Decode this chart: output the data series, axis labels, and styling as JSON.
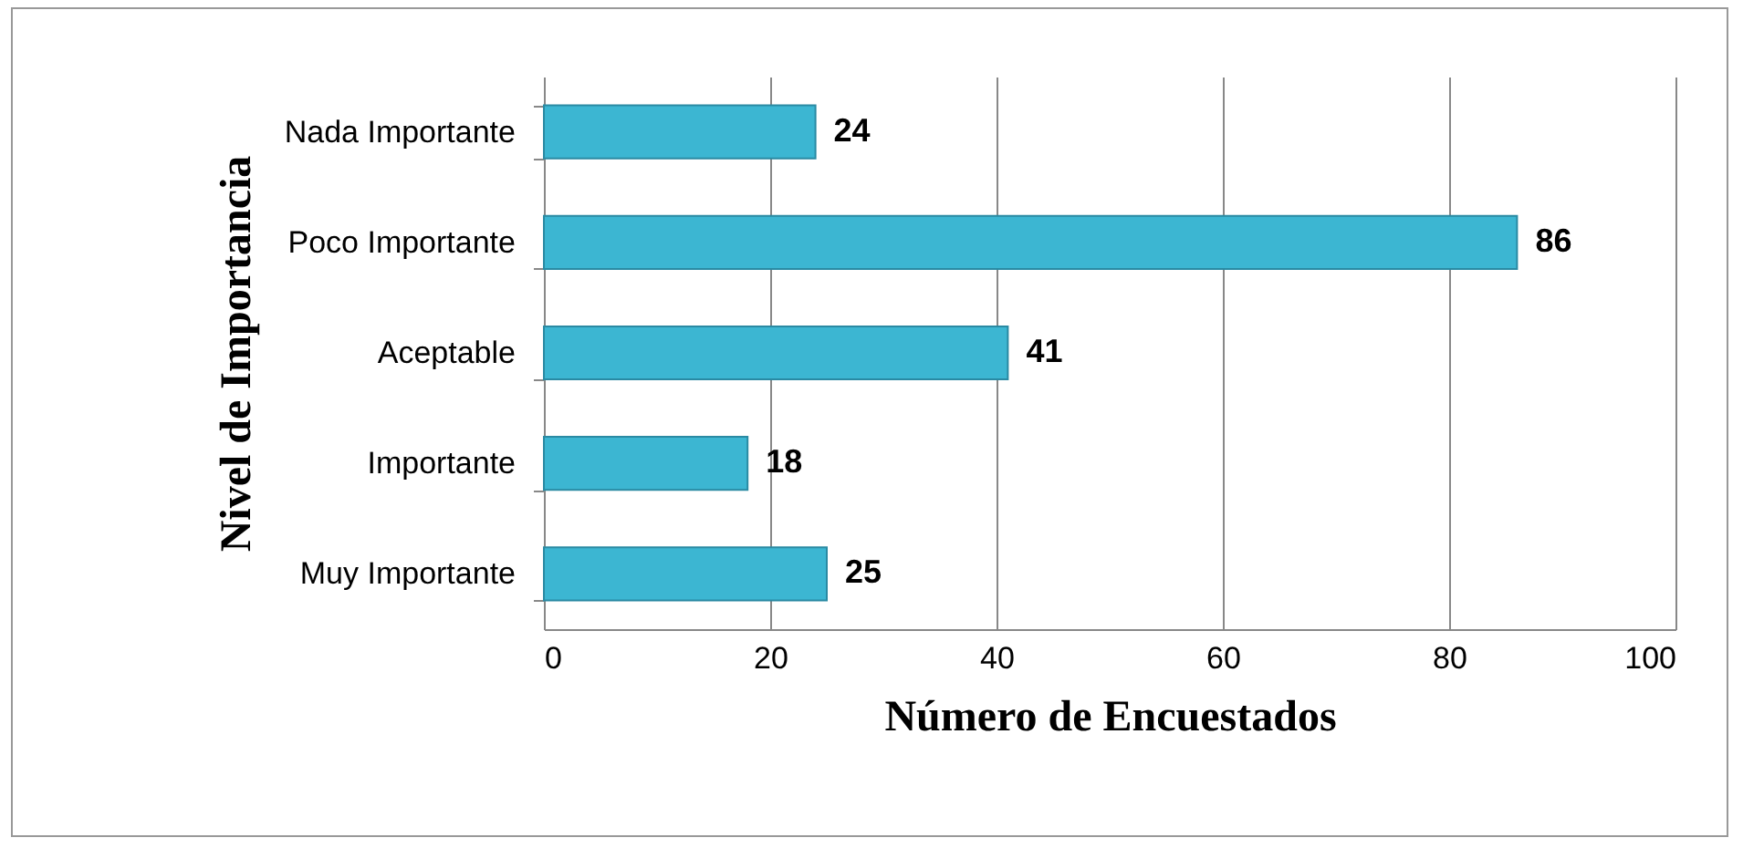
{
  "chart_data": {
    "type": "bar",
    "orientation": "horizontal",
    "categories": [
      "Nada Importante",
      "Poco Importante",
      "Aceptable",
      "Importante",
      "Muy Importante"
    ],
    "values": [
      24,
      86,
      41,
      18,
      25
    ],
    "color": "#3cb6d2",
    "xlabel": "Número de Encuestados",
    "ylabel": "Nivel de Importancia",
    "xlim": [
      0,
      100
    ],
    "xticks": [
      0,
      20,
      40,
      60,
      80,
      100
    ],
    "grid": "x",
    "data_labels": true
  }
}
